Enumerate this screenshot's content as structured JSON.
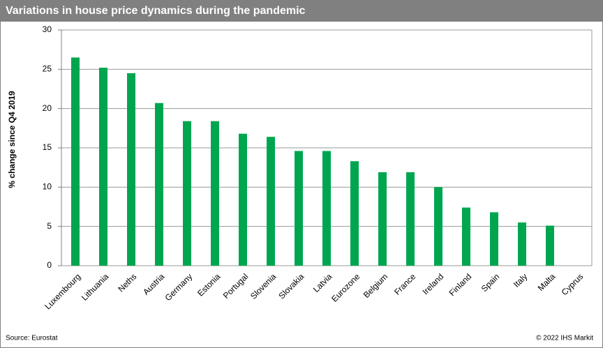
{
  "chart_data": {
    "type": "bar",
    "title": "Variations in house price dynamics during the pandemic",
    "y_label": "% change since Q4 2019",
    "categories": [
      "Luxembourg",
      "Lithuania",
      "Neths",
      "Austria",
      "Germany",
      "Estonia",
      "Portugal",
      "Slovenia",
      "Slovakia",
      "Latvia",
      "Eurozone",
      "Belgium",
      "France",
      "Ireland",
      "Finland",
      "Spain",
      "Italy",
      "Malta",
      "Cyprus"
    ],
    "values": [
      26.5,
      25.2,
      24.5,
      20.7,
      18.4,
      18.4,
      16.8,
      16.4,
      14.6,
      14.6,
      13.3,
      11.9,
      11.9,
      10.0,
      7.4,
      6.8,
      5.5,
      5.1,
      0
    ],
    "color": "#00a64f",
    "ylim": [
      0,
      30
    ],
    "yticks": [
      0,
      5,
      10,
      15,
      20,
      25,
      30
    ],
    "grid": true,
    "source": "Source: Eurostat",
    "copyright": "© 2022  IHS Markit"
  }
}
